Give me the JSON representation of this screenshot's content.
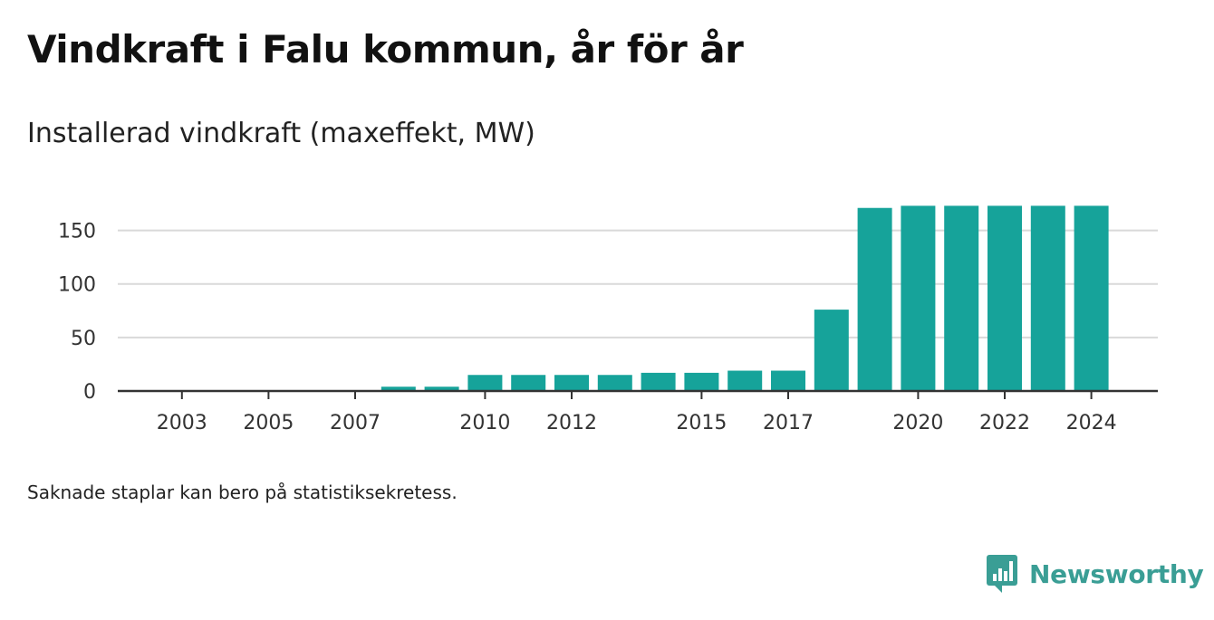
{
  "title": "Vindkraft i Falu kommun, år för år",
  "subtitle": "Installerad vindkraft (maxeffekt, MW)",
  "footnote": "Saknade staplar kan bero på statistiksekretess.",
  "brand": {
    "name": "Newsworthy",
    "icon": "newsworthy-logo-icon",
    "color": "#3a9e95"
  },
  "colors": {
    "bar": "#16a39a",
    "grid": "#d9d9d9",
    "axis": "#333333"
  },
  "chart_data": {
    "type": "bar",
    "title": "Vindkraft i Falu kommun, år för år",
    "ylabel": "Installerad vindkraft (maxeffekt, MW)",
    "xlabel": "",
    "ylim": [
      0,
      175
    ],
    "yticks": [
      0,
      50,
      100,
      150
    ],
    "xticks": [
      2003,
      2005,
      2007,
      2010,
      2012,
      2015,
      2017,
      2020,
      2022,
      2024
    ],
    "x": [
      2002,
      2003,
      2004,
      2005,
      2006,
      2007,
      2008,
      2009,
      2010,
      2011,
      2012,
      2013,
      2014,
      2015,
      2016,
      2017,
      2018,
      2019,
      2020,
      2021,
      2022,
      2023,
      2024
    ],
    "values": [
      0,
      0,
      0,
      0,
      0,
      0,
      4,
      4,
      15,
      15,
      15,
      15,
      17,
      17,
      19,
      19,
      76,
      171,
      173,
      173,
      173,
      173,
      173
    ],
    "grid": true,
    "legend": "none"
  }
}
